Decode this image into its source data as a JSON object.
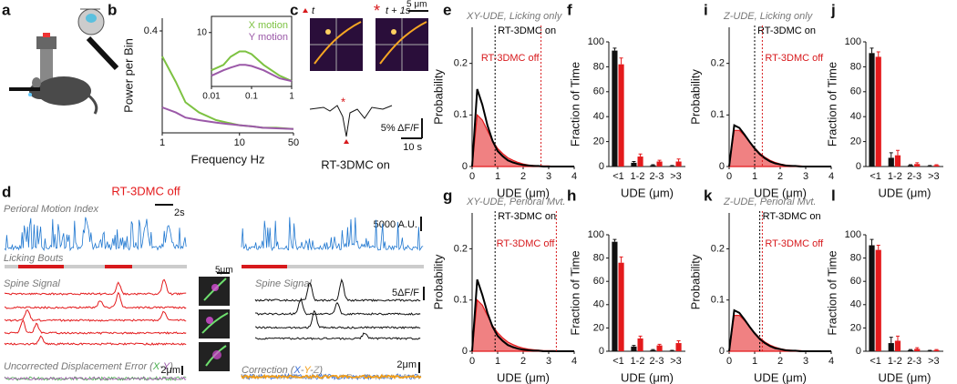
{
  "panel_labels": [
    "a",
    "b",
    "c",
    "d",
    "e",
    "f",
    "g",
    "h",
    "i",
    "j",
    "k",
    "l"
  ],
  "chart_data": [
    {
      "type": "line",
      "xlabel": "Frequency Hz",
      "ylabel": "Power per Bin",
      "xlog": true,
      "x": [
        1,
        1.5,
        2,
        3,
        5,
        7,
        10,
        15,
        20,
        30,
        50
      ],
      "series": [
        {
          "color": "#7dc242",
          "values": [
            0.3,
            0.2,
            0.12,
            0.08,
            0.05,
            0.04,
            0.03,
            0.025,
            0.02,
            0.02,
            0.015
          ]
        },
        {
          "color": "#9b59a8",
          "values": [
            0.1,
            0.08,
            0.06,
            0.05,
            0.04,
            0.035,
            0.03,
            0.025,
            0.02,
            0.018,
            0.015
          ]
        }
      ],
      "xlim": [
        1,
        50
      ],
      "xticks": [
        1,
        10,
        50
      ],
      "ylim": [
        0,
        0.45
      ],
      "yticks": [
        0.4
      ]
    },
    {
      "type": "line",
      "xlog": true,
      "x": [
        0.01,
        0.02,
        0.03,
        0.05,
        0.07,
        0.1,
        0.2,
        0.5,
        1
      ],
      "series": [
        {
          "name": "X motion",
          "color": "#7dc242",
          "values": [
            3,
            4,
            5.5,
            6.5,
            6.5,
            6,
            4,
            2,
            1
          ]
        },
        {
          "name": "Y motion",
          "color": "#9b59a8",
          "values": [
            2,
            3,
            3.5,
            4,
            4,
            3.8,
            3,
            1.5,
            1
          ]
        }
      ],
      "xlim": [
        0.01,
        1
      ],
      "xticks": [
        0.01,
        0.1,
        1
      ],
      "ylim": [
        0,
        13
      ],
      "yticks": [
        10
      ]
    },
    {
      "type": "line",
      "subtitle": "XY-UDE, Licking only",
      "xlabel": "UDE (μm)",
      "ylabel": "Probability",
      "x": [
        0,
        0.2,
        0.4,
        0.6,
        0.8,
        1,
        1.2,
        1.4,
        1.6,
        1.8,
        2,
        2.2,
        2.4,
        2.6,
        2.8,
        3,
        3.2,
        3.4,
        3.6,
        3.8,
        4
      ],
      "series": [
        {
          "color": "#e41a1c",
          "area": true,
          "values": [
            0,
            0.1,
            0.09,
            0.07,
            0.05,
            0.035,
            0.025,
            0.017,
            0.012,
            0.008,
            0.005,
            0.003,
            0.002,
            0.001,
            0.001,
            0.001,
            0,
            0,
            0,
            0,
            0
          ]
        },
        {
          "color": "#000000",
          "values": [
            0,
            0.15,
            0.12,
            0.08,
            0.05,
            0.03,
            0.02,
            0.012,
            0.008,
            0.005,
            0.003,
            0.002,
            0.001,
            0.001,
            0,
            0,
            0,
            0,
            0,
            0,
            0
          ]
        }
      ],
      "xlim": [
        0,
        4
      ],
      "xticks": [
        0,
        1,
        2,
        3,
        4
      ],
      "ylim": [
        0,
        0.27
      ],
      "yticks": [
        0,
        0.1,
        0.2
      ],
      "vlines": [
        {
          "x": 0.9,
          "label": "RT-3DMC on",
          "color": "#000000"
        },
        {
          "x": 2.7,
          "label": "RT-3DMC off",
          "color": "#d7191c"
        }
      ]
    },
    {
      "type": "bar",
      "xlabel": "UDE (μm)",
      "ylabel": "Fraction of Time",
      "categories": [
        "<1",
        "1-2",
        "2-3",
        ">3"
      ],
      "series": [
        {
          "color": "#111111",
          "values": [
            93,
            3,
            1,
            0.5
          ],
          "errors": [
            2,
            1,
            0.5,
            0.3
          ]
        },
        {
          "color": "#e41a1c",
          "values": [
            82,
            8,
            4,
            4
          ],
          "errors": [
            5,
            2,
            1,
            2
          ]
        }
      ],
      "ylim": [
        0,
        100
      ],
      "yticks": [
        0,
        20,
        40,
        60,
        80,
        100
      ]
    },
    {
      "type": "line",
      "subtitle": "XY-UDE, Perioral Mvt.",
      "xlabel": "UDE (μm)",
      "ylabel": "Probability",
      "x": [
        0,
        0.2,
        0.4,
        0.6,
        0.8,
        1,
        1.2,
        1.4,
        1.6,
        1.8,
        2,
        2.2,
        2.4,
        2.6,
        2.8,
        3,
        3.2,
        3.4,
        3.6,
        3.8,
        4
      ],
      "series": [
        {
          "color": "#e41a1c",
          "area": true,
          "values": [
            0,
            0.1,
            0.09,
            0.07,
            0.05,
            0.036,
            0.026,
            0.018,
            0.013,
            0.009,
            0.006,
            0.004,
            0.003,
            0.002,
            0.001,
            0.001,
            0.001,
            0,
            0,
            0,
            0
          ]
        },
        {
          "color": "#000000",
          "values": [
            0,
            0.14,
            0.11,
            0.075,
            0.048,
            0.03,
            0.02,
            0.012,
            0.008,
            0.005,
            0.003,
            0.002,
            0.001,
            0.001,
            0,
            0,
            0,
            0,
            0,
            0,
            0
          ]
        }
      ],
      "xlim": [
        0,
        4
      ],
      "xticks": [
        0,
        1,
        2,
        3,
        4
      ],
      "ylim": [
        0,
        0.27
      ],
      "yticks": [
        0,
        0.1,
        0.2
      ],
      "vlines": [
        {
          "x": 0.9,
          "label": "RT-3DMC on",
          "color": "#000000"
        },
        {
          "x": 3.3,
          "label": "RT-3DMC off",
          "color": "#d7191c"
        }
      ]
    },
    {
      "type": "bar",
      "xlabel": "UDE (μm)",
      "ylabel": "Fraction of Time",
      "categories": [
        "<1",
        "1-2",
        "2-3",
        ">3"
      ],
      "series": [
        {
          "color": "#111111",
          "values": [
            94,
            4,
            1,
            0.5
          ],
          "errors": [
            2,
            1,
            0.5,
            0.3
          ]
        },
        {
          "color": "#e41a1c",
          "values": [
            76,
            11,
            5,
            7
          ],
          "errors": [
            5,
            2,
            1,
            2
          ]
        }
      ],
      "ylim": [
        0,
        100
      ],
      "yticks": [
        0,
        20,
        40,
        60,
        80,
        100
      ]
    },
    {
      "type": "line",
      "subtitle": "Z-UDE, Licking only",
      "xlabel": "UDE (μm)",
      "ylabel": "Probability",
      "x": [
        0,
        0.2,
        0.4,
        0.6,
        0.8,
        1,
        1.2,
        1.4,
        1.6,
        1.8,
        2,
        2.2,
        2.4,
        2.6,
        2.8,
        3,
        3.2,
        3.4,
        3.6,
        3.8,
        4
      ],
      "series": [
        {
          "color": "#e41a1c",
          "area": true,
          "values": [
            0,
            0.07,
            0.07,
            0.06,
            0.048,
            0.036,
            0.026,
            0.018,
            0.012,
            0.008,
            0.005,
            0.003,
            0.002,
            0.001,
            0.001,
            0,
            0,
            0,
            0,
            0,
            0
          ]
        },
        {
          "color": "#000000",
          "values": [
            0,
            0.08,
            0.075,
            0.062,
            0.048,
            0.035,
            0.024,
            0.016,
            0.01,
            0.006,
            0.004,
            0.002,
            0.001,
            0.001,
            0,
            0,
            0,
            0,
            0,
            0,
            0
          ]
        }
      ],
      "xlim": [
        0,
        4
      ],
      "xticks": [
        0,
        1,
        2,
        3,
        4
      ],
      "ylim": [
        0,
        0.27
      ],
      "yticks": [
        0,
        0.1,
        0.2
      ],
      "vlines": [
        {
          "x": 1,
          "label": "RT-3DMC on",
          "color": "#000000"
        },
        {
          "x": 1.3,
          "label": "RT-3DMC off",
          "color": "#d7191c"
        }
      ]
    },
    {
      "type": "bar",
      "xlabel": "UDE (μm)",
      "ylabel": "Fraction of Time",
      "categories": [
        "<1",
        "1-2",
        "2-3",
        ">3"
      ],
      "series": [
        {
          "color": "#111111",
          "values": [
            91,
            7,
            1,
            0.5
          ],
          "errors": [
            4,
            4,
            0.5,
            0.3
          ]
        },
        {
          "color": "#e41a1c",
          "values": [
            88,
            9,
            2,
            1
          ],
          "errors": [
            4,
            4,
            1,
            0.5
          ]
        }
      ],
      "ylim": [
        0,
        100
      ],
      "yticks": [
        0,
        20,
        40,
        60,
        80,
        100
      ]
    },
    {
      "type": "line",
      "subtitle": "Z-UDE, Perioral Mvt.",
      "xlabel": "UDE (μm)",
      "ylabel": "Probability",
      "x": [
        0,
        0.2,
        0.4,
        0.6,
        0.8,
        1,
        1.2,
        1.4,
        1.6,
        1.8,
        2,
        2.2,
        2.4,
        2.6,
        2.8,
        3,
        3.2,
        3.4,
        3.6,
        3.8,
        4
      ],
      "series": [
        {
          "color": "#e41a1c",
          "area": true,
          "values": [
            0,
            0.07,
            0.07,
            0.06,
            0.048,
            0.036,
            0.026,
            0.018,
            0.012,
            0.008,
            0.005,
            0.003,
            0.002,
            0.001,
            0.001,
            0,
            0,
            0,
            0,
            0,
            0
          ]
        },
        {
          "color": "#000000",
          "values": [
            0,
            0.08,
            0.075,
            0.062,
            0.048,
            0.035,
            0.024,
            0.016,
            0.01,
            0.006,
            0.004,
            0.002,
            0.001,
            0.001,
            0,
            0,
            0,
            0,
            0,
            0,
            0
          ]
        }
      ],
      "xlim": [
        0,
        4
      ],
      "xticks": [
        0,
        1,
        2,
        3,
        4
      ],
      "ylim": [
        0,
        0.27
      ],
      "yticks": [
        0,
        0.1,
        0.2
      ],
      "vlines": [
        {
          "x": 1.2,
          "label": "RT-3DMC on",
          "color": "#000000"
        },
        {
          "x": 1.3,
          "label": "RT-3DMC off",
          "color": "#d7191c"
        }
      ]
    },
    {
      "type": "bar",
      "xlabel": "UDE (μm)",
      "ylabel": "Fraction of Time",
      "categories": [
        "<1",
        "1-2",
        "2-3",
        ">3"
      ],
      "series": [
        {
          "color": "#111111",
          "values": [
            91,
            7,
            1,
            0.5
          ],
          "errors": [
            5,
            5,
            0.5,
            0.3
          ]
        },
        {
          "color": "#e41a1c",
          "values": [
            87,
            9,
            2,
            1
          ],
          "errors": [
            4,
            4,
            1,
            0.5
          ]
        }
      ],
      "ylim": [
        0,
        100
      ],
      "yticks": [
        0,
        20,
        40,
        60,
        80,
        100
      ]
    }
  ],
  "panel_c": {
    "t": "t",
    "t_next": "t + 1s",
    "asterisk": "*",
    "scale_space": "5 μm",
    "scale_df": "5% ΔF/F",
    "scale_time": "10 s",
    "condition": "RT-3DMC on"
  },
  "panel_d": {
    "condition": "RT-3DMC off",
    "motion_label": "Perioral Motion Index",
    "scale_time": "2s",
    "scale_motion": "5000 A.U.",
    "licking_label": "Licking Bouts",
    "spine_label": "Spine Signal",
    "scale_df": "5ΔF/F",
    "image_scale": "5μm",
    "uncorrected": [
      "Uncorrected Displacement Error (",
      "X",
      "-",
      "Y",
      ")"
    ],
    "scale_um_left": "2μm",
    "correction": [
      "Correction (",
      "X",
      "-",
      "Y",
      "-",
      "Z",
      ")"
    ],
    "scale_um_right": "2μm"
  }
}
